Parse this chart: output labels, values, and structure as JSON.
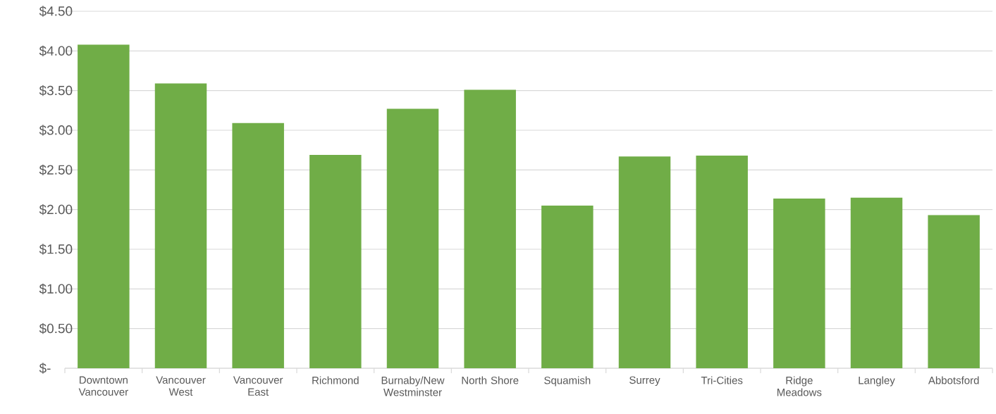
{
  "chart_data": {
    "type": "bar",
    "categories": [
      "Downtown Vancouver",
      "Vancouver West",
      "Vancouver East",
      "Richmond",
      "Burnaby/New Westminster",
      "North Shore",
      "Squamish",
      "Surrey",
      "Tri-Cities",
      "Ridge Meadows",
      "Langley",
      "Abbotsford"
    ],
    "values": [
      4.08,
      3.59,
      3.09,
      2.69,
      3.27,
      3.51,
      2.05,
      2.67,
      2.68,
      2.14,
      2.15,
      1.93
    ],
    "color": "#70ad47",
    "ylim": [
      0,
      4.5
    ],
    "yticks": [
      {
        "value": 0,
        "label": "$-"
      },
      {
        "value": 0.5,
        "label": "$0.50"
      },
      {
        "value": 1,
        "label": "$1.00"
      },
      {
        "value": 1.5,
        "label": "$1.50"
      },
      {
        "value": 2,
        "label": "$2.00"
      },
      {
        "value": 2.5,
        "label": "$2.50"
      },
      {
        "value": 3,
        "label": "$3.00"
      },
      {
        "value": 3.5,
        "label": "$3.50"
      },
      {
        "value": 4,
        "label": "$4.00"
      },
      {
        "value": 4.5,
        "label": "$4.50"
      }
    ],
    "grid": "y"
  }
}
